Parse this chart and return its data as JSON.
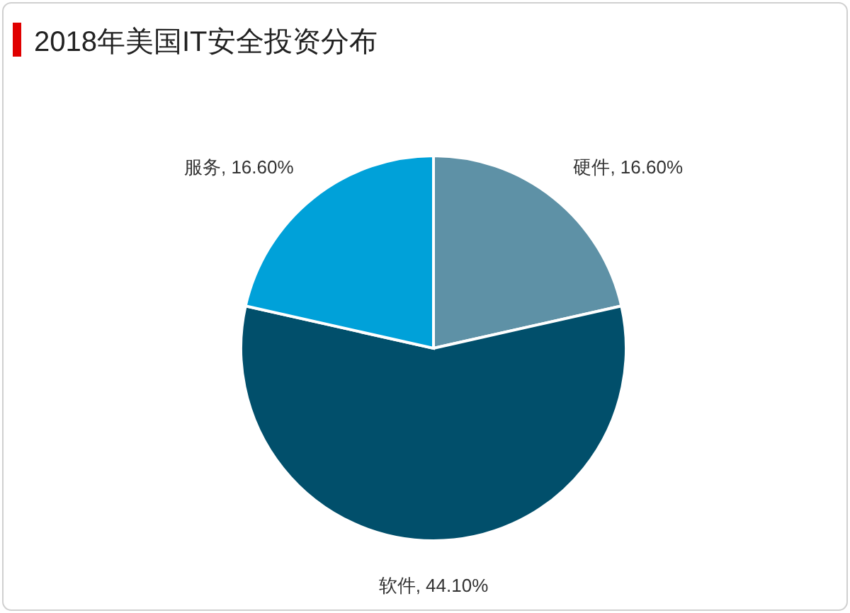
{
  "chart_data": {
    "type": "pie",
    "title": "2018年美国IT安全投资分布",
    "categories": [
      "硬件",
      "软件",
      "服务"
    ],
    "values": [
      16.6,
      44.1,
      16.6
    ],
    "colors": [
      "#5e91a6",
      "#014f6b",
      "#00a1d9"
    ],
    "value_labels": [
      "16.60%",
      "44.10%",
      "16.60%"
    ],
    "legend": false
  }
}
